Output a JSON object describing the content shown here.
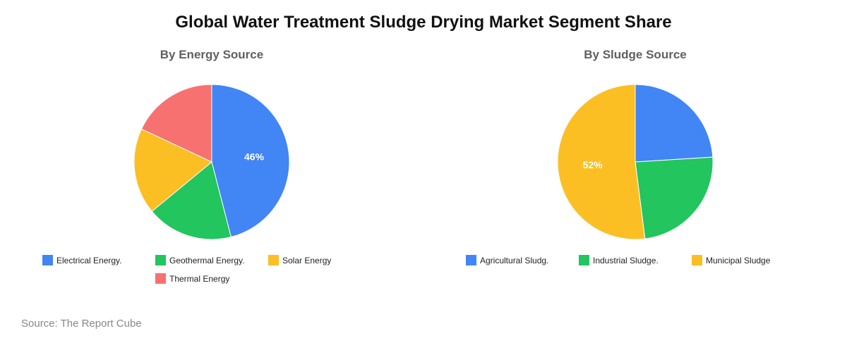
{
  "title": "Global Water Treatment Sludge Drying Market Segment Share",
  "source": "Source: The Report Cube",
  "chart_data": [
    {
      "type": "pie",
      "title": "By Energy Source",
      "categories": [
        "Electrical Energy.",
        "Geothermal Energy.",
        "Solar Energy",
        "Thermal Energy"
      ],
      "values": [
        46,
        18,
        18,
        18
      ],
      "colors": [
        "#4285f4",
        "#22c55e",
        "#fbbf24",
        "#f87171"
      ],
      "data_labels": [
        "46%",
        "",
        "",
        ""
      ],
      "legend": "bottom"
    },
    {
      "type": "pie",
      "title": "By Sludge Source",
      "categories": [
        "Agricultural Sludg.",
        "Industrial Sludge.",
        "Municipal Sludge"
      ],
      "values": [
        24,
        24,
        52
      ],
      "colors": [
        "#4285f4",
        "#22c55e",
        "#fbbf24"
      ],
      "data_labels": [
        "",
        "",
        "52%"
      ],
      "legend": "bottom"
    }
  ]
}
